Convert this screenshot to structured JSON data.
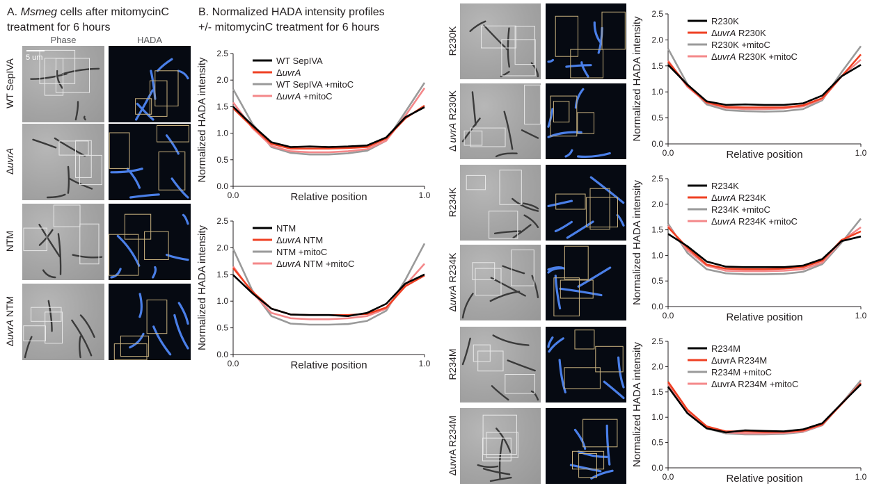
{
  "panel_a": {
    "title_prefix": "A. ",
    "title_italic": "Msmeg",
    "title_rest": " cells after mitomycinC",
    "title_line2": "treatment for 6 hours",
    "col_phase": "Phase",
    "col_hada": "HADA",
    "scale_bar": "5 um",
    "rows": [
      {
        "label_html": "WT SepIVA",
        "label_pre": "",
        "label_it": "",
        "label_post": "WT SepIVA"
      },
      {
        "label_pre": "Δ",
        "label_it": "uvrA",
        "label_post": ""
      },
      {
        "label_pre": "",
        "label_it": "",
        "label_post": "NTM"
      },
      {
        "label_pre": "Δ",
        "label_it": "uvrA",
        "label_post": " NTM"
      }
    ]
  },
  "panel_b": {
    "title_line1": "B. Normalized HADA intensity profiles",
    "title_line2": "+/- mitomycinC treatment for 6 hours"
  },
  "right_rows": [
    {
      "label_pre": "",
      "label_it": "",
      "label_post": "R230K"
    },
    {
      "label_pre": "Δ ",
      "label_it": "uvrA",
      "label_post": " R230K"
    },
    {
      "label_pre": "",
      "label_it": "",
      "label_post": "R234K"
    },
    {
      "label_pre": "Δ",
      "label_it": "uvrA",
      "label_post": " R234K"
    },
    {
      "label_pre": "",
      "label_it": "",
      "label_post": "R234M"
    },
    {
      "label_pre": "ΔuvrA R234M",
      "label_it": "",
      "label_post": ""
    }
  ],
  "colors": {
    "black": "#000000",
    "red": "#ef4023",
    "gray": "#9a9a9a",
    "pink": "#f4888a"
  },
  "chart_data": [
    {
      "type": "line",
      "ylabel": "Normalized HADA intensity",
      "xlabel": "Relative position",
      "x_ticks": [
        "0.0",
        "1.0"
      ],
      "y_ticks": [
        "0.0",
        "0.5",
        "1.0",
        "1.5",
        "2.0",
        "2.5"
      ],
      "xlim": [
        0,
        1
      ],
      "ylim": [
        0,
        2.5
      ],
      "x": [
        0,
        0.1,
        0.2,
        0.3,
        0.4,
        0.5,
        0.6,
        0.7,
        0.8,
        0.9,
        1.0
      ],
      "series": [
        {
          "name": "WT SepIVA",
          "legend_pre": "WT SepIVA",
          "legend_it": "",
          "legend_post": "",
          "color": "#000000",
          "values": [
            1.5,
            1.15,
            0.83,
            0.74,
            0.75,
            0.74,
            0.75,
            0.77,
            0.92,
            1.3,
            1.49
          ]
        },
        {
          "name": "ΔuvrA",
          "legend_pre": "Δ",
          "legend_it": "uvrA",
          "legend_post": "",
          "color": "#ef4023",
          "values": [
            1.47,
            1.12,
            0.8,
            0.71,
            0.71,
            0.71,
            0.72,
            0.74,
            0.9,
            1.28,
            1.52
          ]
        },
        {
          "name": "WT SepIVA +mitoC",
          "legend_pre": "WT SepIVA +mitoC",
          "legend_it": "",
          "legend_post": "",
          "color": "#9a9a9a",
          "values": [
            1.83,
            1.18,
            0.74,
            0.63,
            0.6,
            0.6,
            0.62,
            0.67,
            0.86,
            1.4,
            1.95
          ]
        },
        {
          "name": "ΔuvrA +mitoC",
          "legend_pre": "Δ",
          "legend_it": "uvrA",
          "legend_post": " +mitoC",
          "color": "#f4888a",
          "values": [
            1.58,
            1.1,
            0.76,
            0.66,
            0.64,
            0.64,
            0.66,
            0.7,
            0.86,
            1.33,
            1.85
          ]
        }
      ]
    },
    {
      "type": "line",
      "ylabel": "Normalized HADA intensity",
      "xlabel": "Relative position",
      "x_ticks": [
        "0.0",
        "1.0"
      ],
      "y_ticks": [
        "0.0",
        "0.5",
        "1.0",
        "1.5",
        "2.0",
        "2.5"
      ],
      "xlim": [
        0,
        1
      ],
      "ylim": [
        0,
        2.5
      ],
      "x": [
        0,
        0.1,
        0.2,
        0.3,
        0.4,
        0.5,
        0.6,
        0.7,
        0.8,
        0.9,
        1.0
      ],
      "series": [
        {
          "name": "NTM",
          "legend_pre": "NTM",
          "legend_it": "",
          "legend_post": "",
          "color": "#000000",
          "values": [
            1.49,
            1.15,
            0.86,
            0.75,
            0.74,
            0.74,
            0.72,
            0.78,
            0.95,
            1.33,
            1.5
          ]
        },
        {
          "name": "ΔuvrA NTM",
          "legend_pre": "Δ",
          "legend_it": "uvrA",
          "legend_post": " NTM",
          "color": "#ef4023",
          "values": [
            1.62,
            1.18,
            0.86,
            0.75,
            0.74,
            0.74,
            0.74,
            0.76,
            0.88,
            1.28,
            1.48
          ]
        },
        {
          "name": "NTM +mitoC",
          "legend_pre": "NTM +mitoC",
          "legend_it": "",
          "legend_post": "",
          "color": "#9a9a9a",
          "values": [
            1.98,
            1.2,
            0.72,
            0.58,
            0.56,
            0.56,
            0.57,
            0.63,
            0.82,
            1.4,
            2.08
          ]
        },
        {
          "name": "ΔuvrA NTM +mitoC",
          "legend_pre": "Δ",
          "legend_it": "uvrA",
          "legend_post": " NTM +mitoC",
          "color": "#f4888a",
          "values": [
            1.65,
            1.16,
            0.78,
            0.68,
            0.66,
            0.66,
            0.68,
            0.72,
            0.86,
            1.3,
            1.7
          ]
        }
      ]
    },
    {
      "type": "line",
      "ylabel": "Normalized HADA intensity",
      "xlabel": "Relative position",
      "x_ticks": [
        "0.0",
        "1.0"
      ],
      "y_ticks": [
        "0.0",
        "0.5",
        "1.0",
        "1.5",
        "2.0",
        "2.5"
      ],
      "xlim": [
        0,
        1
      ],
      "ylim": [
        0,
        2.5
      ],
      "x": [
        0,
        0.1,
        0.2,
        0.3,
        0.4,
        0.5,
        0.6,
        0.7,
        0.8,
        0.9,
        1.0
      ],
      "series": [
        {
          "name": "R230K",
          "legend_pre": "R230K",
          "legend_it": "",
          "legend_post": "",
          "color": "#000000",
          "values": [
            1.52,
            1.14,
            0.82,
            0.75,
            0.76,
            0.75,
            0.75,
            0.78,
            0.93,
            1.3,
            1.52
          ]
        },
        {
          "name": "ΔuvrA R230K",
          "legend_pre": "Δ",
          "legend_it": "uvrA",
          "legend_post": " R230K",
          "color": "#ef4023",
          "values": [
            1.58,
            1.12,
            0.8,
            0.71,
            0.7,
            0.7,
            0.7,
            0.74,
            0.88,
            1.3,
            1.72
          ]
        },
        {
          "name": "R230K +mitoC",
          "legend_pre": "R230K +mitoC",
          "legend_it": "",
          "legend_post": "",
          "color": "#9a9a9a",
          "values": [
            1.83,
            1.15,
            0.76,
            0.65,
            0.63,
            0.62,
            0.63,
            0.67,
            0.84,
            1.38,
            1.88
          ]
        },
        {
          "name": "ΔuvrA R230K +mitoC",
          "legend_pre": "Δ",
          "legend_it": "uvrA",
          "legend_post": " R230K +mitoC",
          "color": "#f4888a",
          "values": [
            1.6,
            1.1,
            0.79,
            0.69,
            0.67,
            0.67,
            0.68,
            0.72,
            0.86,
            1.3,
            1.62
          ]
        }
      ]
    },
    {
      "type": "line",
      "ylabel": "Normalized HADA intensity",
      "xlabel": "Relative position",
      "x_ticks": [
        "0.0",
        "1.0"
      ],
      "y_ticks": [
        "0.0",
        "0.5",
        "1.0",
        "1.5",
        "2.0",
        "2.5"
      ],
      "xlim": [
        0,
        1
      ],
      "ylim": [
        0,
        2.5
      ],
      "x": [
        0,
        0.1,
        0.2,
        0.3,
        0.4,
        0.5,
        0.6,
        0.7,
        0.8,
        0.9,
        1.0
      ],
      "series": [
        {
          "name": "R234K",
          "legend_pre": "R234K",
          "legend_it": "",
          "legend_post": "",
          "color": "#000000",
          "values": [
            1.42,
            1.18,
            0.88,
            0.78,
            0.77,
            0.77,
            0.77,
            0.8,
            0.93,
            1.28,
            1.37
          ]
        },
        {
          "name": "ΔuvrA R234K",
          "legend_pre": "Δ",
          "legend_it": "uvrA",
          "legend_post": " R234K",
          "color": "#ef4023",
          "values": [
            1.55,
            1.15,
            0.82,
            0.74,
            0.73,
            0.73,
            0.74,
            0.77,
            0.9,
            1.3,
            1.47
          ]
        },
        {
          "name": "R234K +mitoC",
          "legend_pre": "R234K +mitoC",
          "legend_it": "",
          "legend_post": "",
          "color": "#9a9a9a",
          "values": [
            1.62,
            1.05,
            0.73,
            0.65,
            0.63,
            0.63,
            0.64,
            0.68,
            0.83,
            1.25,
            1.72
          ]
        },
        {
          "name": "ΔuvrA R234K +mitoC",
          "legend_pre": "Δ",
          "legend_it": "uvrA",
          "legend_post": " R234K +mitoC",
          "color": "#f4888a",
          "values": [
            1.58,
            1.1,
            0.8,
            0.7,
            0.69,
            0.69,
            0.7,
            0.73,
            0.86,
            1.28,
            1.55
          ]
        }
      ]
    },
    {
      "type": "line",
      "ylabel": "Normalized HADA intensity",
      "xlabel": "Relative position",
      "x_ticks": [
        "0.0",
        "1.0"
      ],
      "y_ticks": [
        "0.0",
        "0.5",
        "1.0",
        "1.5",
        "2.0",
        "2.5"
      ],
      "xlim": [
        0,
        1
      ],
      "ylim": [
        0,
        2.5
      ],
      "x": [
        0,
        0.1,
        0.2,
        0.3,
        0.4,
        0.5,
        0.6,
        0.7,
        0.8,
        0.9,
        1.0
      ],
      "series": [
        {
          "name": "R234M",
          "legend_pre": "R234M",
          "legend_it": "",
          "legend_post": "",
          "color": "#000000",
          "values": [
            1.6,
            1.08,
            0.78,
            0.7,
            0.74,
            0.73,
            0.72,
            0.76,
            0.88,
            1.27,
            1.65
          ]
        },
        {
          "name": "ΔuvrA R234M",
          "legend_pre": "ΔuvrA R234M",
          "legend_it": "",
          "legend_post": "",
          "color": "#ef4023",
          "values": [
            1.7,
            1.15,
            0.82,
            0.72,
            0.72,
            0.71,
            0.71,
            0.74,
            0.86,
            1.26,
            1.67
          ]
        },
        {
          "name": "R234M +mitoC",
          "legend_pre": "R234M +mitoC",
          "legend_it": "",
          "legend_post": "",
          "color": "#9a9a9a",
          "values": [
            1.65,
            1.1,
            0.78,
            0.68,
            0.66,
            0.66,
            0.67,
            0.71,
            0.84,
            1.27,
            1.73
          ]
        },
        {
          "name": "ΔuvrA R234M +mitoC",
          "legend_pre": "ΔuvrA R234M +mitoC",
          "legend_it": "",
          "legend_post": "",
          "color": "#f4888a",
          "values": [
            1.66,
            1.12,
            0.8,
            0.7,
            0.68,
            0.68,
            0.69,
            0.72,
            0.85,
            1.27,
            1.68
          ]
        }
      ]
    }
  ]
}
